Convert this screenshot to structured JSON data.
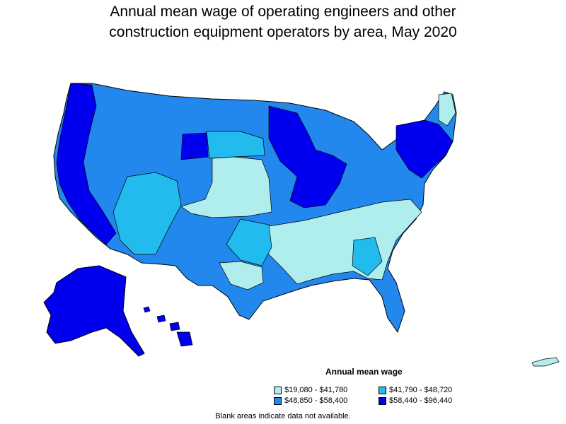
{
  "title": {
    "line1": "Annual mean wage of operating engineers and other",
    "line2": "construction equipment operators by area, May 2020"
  },
  "legend": {
    "title": "Annual mean wage",
    "items": [
      {
        "label": "$19,080 - $41,780",
        "color": "#b0eeee"
      },
      {
        "label": "$41,790 - $48,720",
        "color": "#22bbee"
      },
      {
        "label": "$48,850 - $58,400",
        "color": "#2288ee"
      },
      {
        "label": "$58,440 - $96,440",
        "color": "#0000ee"
      }
    ]
  },
  "note": "Blank areas indicate data not available."
}
